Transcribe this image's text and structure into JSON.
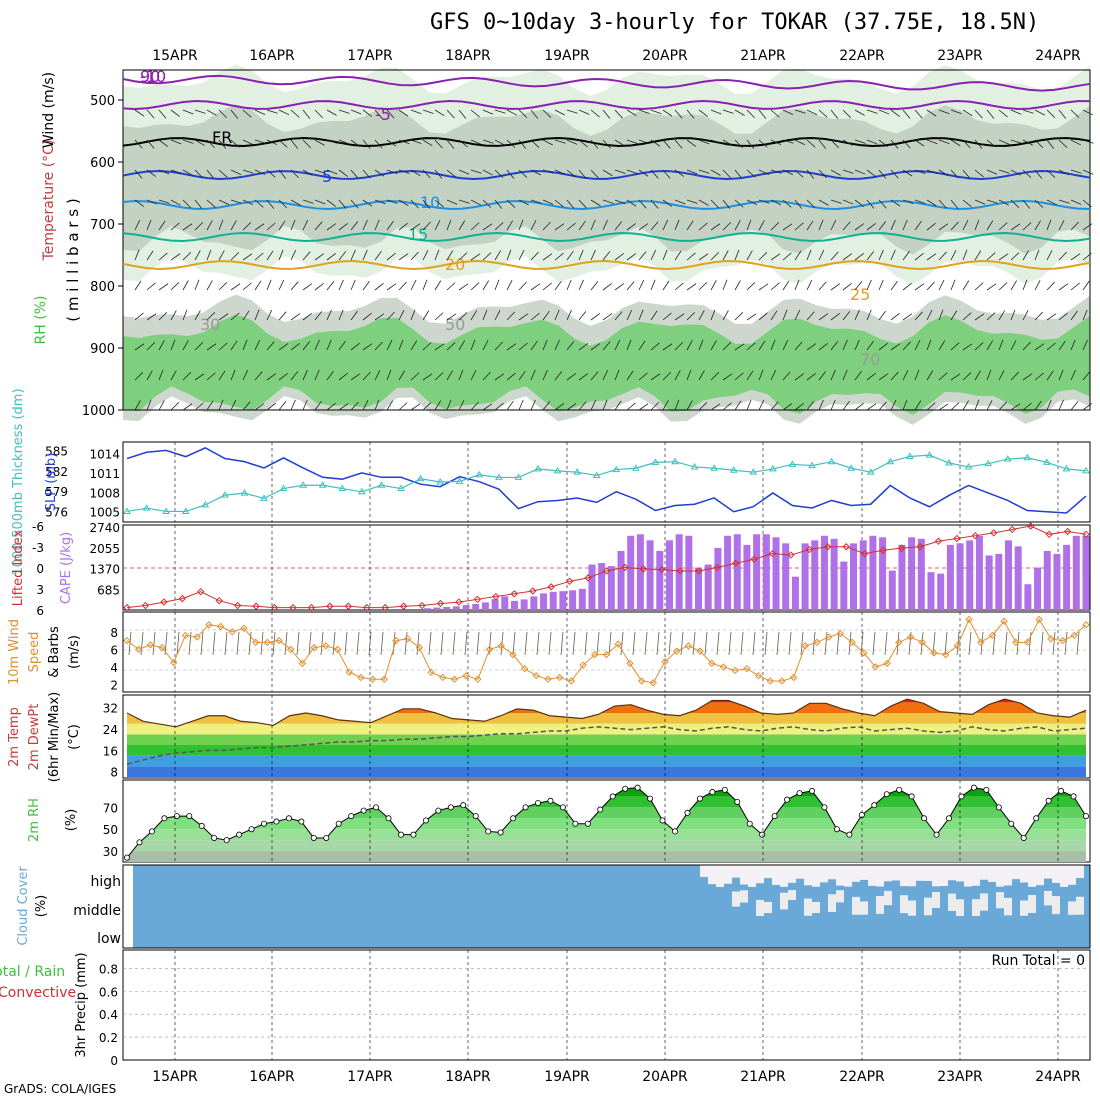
{
  "title": "GFS 0~10day 3-hourly for TOKAR (37.75E, 18.5N)",
  "footer": "GrADS: COLA/IGES",
  "date_labels": [
    "15APR",
    "16APR",
    "17APR",
    "18APR",
    "19APR",
    "20APR",
    "21APR",
    "22APR",
    "23APR",
    "24APR"
  ],
  "colors": {
    "rh_green": "#3fbf3f",
    "slp": "#1f3fcf",
    "thickness": "#3fbfbf",
    "lifted": "#d03030",
    "cape": "#b070e8",
    "wind": "#e09030",
    "cloud": "#6aa8d8"
  },
  "chart_data": [
    {
      "type": "heatmap",
      "panel": "upper-air",
      "ylabel_rh": "RH (%)",
      "ylabel_temp": "Temperature (°C)",
      "ylabel_wind": "Wind (m/s)",
      "ylabel_pressure": "( m i l l i b a r s )",
      "y_ticks": [
        500,
        600,
        700,
        800,
        900,
        1000
      ],
      "contour_labels": [
        "-10",
        "-5",
        "FR",
        "5",
        "10",
        "15",
        "20",
        "25",
        "30",
        "50",
        "70",
        "90"
      ]
    },
    {
      "type": "line",
      "panel": "slp-thickness",
      "ylabel_slp": "SLP (mb)",
      "ylabel_thk": "1000-500mb Thickness (dm)",
      "slp_ticks": [
        1005,
        1008,
        1011,
        1014
      ],
      "thk_ticks": [
        576,
        579,
        582,
        585
      ],
      "series": [
        {
          "name": "SLP",
          "values": [
            1013.5,
            1014.5,
            1014.8,
            1013.8,
            1015.2,
            1013.5,
            1013,
            1012,
            1013.6,
            1012,
            1010.5,
            1010.2,
            1011.2,
            1010.5,
            1010.5,
            1009.4,
            1009,
            1010.6,
            1009.8,
            1008.6,
            1005.5,
            1006.6,
            1006.8,
            1007.2,
            1006.5,
            1008.2,
            1007,
            1005.2,
            1006,
            1006.2,
            1007.2,
            1005,
            1005.8,
            1008,
            1006,
            1005.6,
            1006.8,
            1006,
            1006.2,
            1009.2,
            1007.2,
            1005.8,
            1007.6,
            1009.2,
            1008,
            1006.8,
            1005.2,
            1005,
            1004.8,
            1007.5
          ]
        },
        {
          "name": "Thickness",
          "values": [
            576,
            576.5,
            576,
            576,
            577,
            578.5,
            578.8,
            578,
            579.5,
            580,
            580,
            579.5,
            579,
            580,
            579.5,
            581,
            580.5,
            580.6,
            581.6,
            581.2,
            581.2,
            582.5,
            582.2,
            582,
            581.5,
            582.4,
            582.6,
            583.5,
            583.6,
            582.8,
            582.6,
            582.3,
            582,
            582.5,
            583.2,
            583,
            583.6,
            582.6,
            582,
            583.6,
            584.4,
            584.6,
            583.4,
            582.8,
            583.3,
            584,
            584.2,
            583.5,
            582.5,
            582.2
          ]
        }
      ]
    },
    {
      "type": "bar",
      "panel": "cape-lifted-index",
      "ylabel_li": "Lifted Index",
      "ylabel_cape": "CAPE (J/kg)",
      "li_ticks": [
        "6",
        "3",
        "0",
        "-3",
        "-6"
      ],
      "cape_ticks": [
        685,
        1370,
        2055,
        2740
      ],
      "series": [
        {
          "name": "CAPE",
          "values": [
            0,
            0,
            0,
            0,
            0,
            0,
            0,
            0,
            0,
            0,
            0,
            0,
            0,
            0,
            0,
            0,
            0,
            0,
            0,
            0,
            0,
            0,
            0,
            0,
            0,
            0,
            0,
            0,
            0,
            0,
            0,
            60,
            80,
            100,
            120,
            160,
            200,
            250,
            360,
            450,
            300,
            350,
            450,
            550,
            600,
            620,
            650,
            700,
            1500,
            1550,
            1450,
            1950,
            2450,
            2500,
            2300,
            1950,
            2300,
            2500,
            2450,
            1400,
            1500,
            2050,
            2450,
            2500,
            2150,
            2500,
            2500,
            2400,
            2200,
            1100,
            2200,
            2300,
            2450,
            2350,
            1600,
            2200,
            2300,
            2450,
            2400,
            1300,
            2150,
            2400,
            2350,
            1250,
            1200,
            2150,
            2200,
            2300,
            2450,
            1800,
            1850,
            2300,
            2100,
            850,
            1400,
            1950,
            1850,
            2150,
            2450,
            2450
          ]
        },
        {
          "name": "Lifted Index",
          "values": [
            5.8,
            5.5,
            5,
            4.5,
            3.5,
            4.8,
            5.5,
            5.6,
            5.8,
            5.8,
            5.8,
            5.6,
            5.6,
            5.8,
            5.8,
            5.6,
            5.5,
            5.2,
            5,
            4.6,
            4.2,
            3.8,
            3.4,
            2.8,
            2,
            1.5,
            0.5,
            0,
            0.2,
            0.3,
            0.5,
            0.5,
            0,
            -0.6,
            -1.2,
            -2,
            -1.8,
            -2.6,
            -3,
            -3,
            -2,
            -2.5,
            -2.8,
            -3,
            -3.8,
            -4.2,
            -4.6,
            -5,
            -5.5,
            -6,
            -4.8,
            -5.2,
            -4.8
          ]
        }
      ]
    },
    {
      "type": "line",
      "panel": "wind",
      "ylabel": "10m Wind Speed & Barbs (m/s)",
      "y_ticks": [
        2,
        4,
        6,
        8
      ],
      "series": [
        {
          "name": "10m Wind",
          "values": [
            7,
            6,
            6.5,
            6.2,
            4.5,
            7.6,
            7.4,
            8.8,
            8.6,
            8,
            8.4,
            6.8,
            6.8,
            7,
            6,
            4.4,
            6.2,
            6.4,
            6,
            3.4,
            2.8,
            2.6,
            2.6,
            7,
            7.2,
            6.2,
            3.4,
            2.8,
            2.6,
            3,
            2.6,
            6,
            6.4,
            5.4,
            3.8,
            3,
            2.6,
            2.8,
            2.4,
            4.2,
            5.4,
            5.4,
            6.6,
            4.4,
            2.4,
            2.2,
            4.6,
            5.8,
            6.4,
            5.8,
            4.4,
            4,
            3.6,
            3.8,
            3,
            2.4,
            2.4,
            2.8,
            6.4,
            6.8,
            7.4,
            7.8,
            6.8,
            5.6,
            4,
            4.4,
            6.8,
            7.4,
            6.8,
            5.6,
            5.4,
            6.4,
            9.4,
            6.8,
            7.6,
            9.2,
            6.8,
            6.8,
            9.4,
            7.2,
            7,
            7.6,
            8.8
          ]
        }
      ]
    },
    {
      "type": "area",
      "panel": "temperature",
      "ylabel": "2m Temp 2m DewPt (6hr Min/Max) (°C)",
      "y_ticks": [
        8,
        16,
        24,
        32
      ],
      "series": [
        {
          "name": "2m Temp",
          "values": [
            29.5,
            26.5,
            25.5,
            24.5,
            26.5,
            28.5,
            28.5,
            26.5,
            26,
            25,
            28.5,
            29.5,
            28.5,
            27,
            26.5,
            26,
            28.5,
            31,
            31,
            29.5,
            27.5,
            27,
            26.5,
            28.5,
            31,
            30.5,
            28.5,
            28,
            27.5,
            29,
            32,
            32.5,
            30.5,
            29,
            28.5,
            30.5,
            34,
            34,
            32,
            29.5,
            29,
            29.5,
            33,
            33,
            31,
            29.5,
            28.5,
            32,
            34.5,
            33,
            30,
            29.5,
            29,
            32.5,
            34.5,
            33,
            29.5,
            28.5,
            28,
            30.5
          ]
        },
        {
          "name": "2m DewPt",
          "values": [
            11,
            12.5,
            14,
            15,
            15.5,
            16,
            16,
            16.5,
            17,
            17,
            17.5,
            18,
            18.5,
            19,
            19,
            19.5,
            19.5,
            20,
            20,
            20.5,
            21,
            21,
            21.5,
            22,
            22,
            22.5,
            23,
            23,
            24,
            24.5,
            24,
            23.5,
            24,
            24.5,
            23.5,
            23,
            24,
            24.5,
            23.5,
            23,
            24,
            24.5,
            23.5,
            23,
            24,
            24.5,
            23,
            23.5,
            24,
            23,
            22.5,
            23,
            24.5,
            23.5,
            23,
            24,
            24.5,
            23,
            23.5,
            24
          ]
        }
      ]
    },
    {
      "type": "area",
      "panel": "humidity",
      "ylabel": "2m RH (%)",
      "y_ticks": [
        30,
        50,
        70
      ],
      "series": [
        {
          "name": "2m RH",
          "values": [
            24,
            38,
            48,
            60,
            62,
            62,
            53,
            42,
            40,
            45,
            50,
            55,
            57,
            60,
            57,
            42,
            42,
            55,
            62,
            67,
            70,
            60,
            45,
            45,
            58,
            67,
            70,
            72,
            62,
            48,
            47,
            60,
            70,
            74,
            76,
            70,
            55,
            55,
            68,
            80,
            87,
            88,
            78,
            58,
            48,
            65,
            78,
            84,
            86,
            75,
            55,
            45,
            62,
            77,
            83,
            85,
            70,
            50,
            45,
            63,
            72,
            82,
            86,
            80,
            60,
            45,
            60,
            80,
            88,
            86,
            70,
            55,
            42,
            60,
            76,
            85,
            80,
            62
          ]
        }
      ]
    },
    {
      "type": "heatmap",
      "panel": "cloud-cover",
      "ylabel": "Cloud Cover (%)",
      "levels": [
        "high",
        "middle",
        "low"
      ]
    },
    {
      "type": "bar",
      "panel": "precipitation",
      "ylabel": "3hr Precip (mm)",
      "ylabel_total": "Total / Rain",
      "ylabel_convective": "Convective",
      "y_ticks": [
        0,
        0.2,
        0.4,
        0.6,
        0.8
      ],
      "run_total": "Run Total = 0",
      "values": []
    }
  ]
}
